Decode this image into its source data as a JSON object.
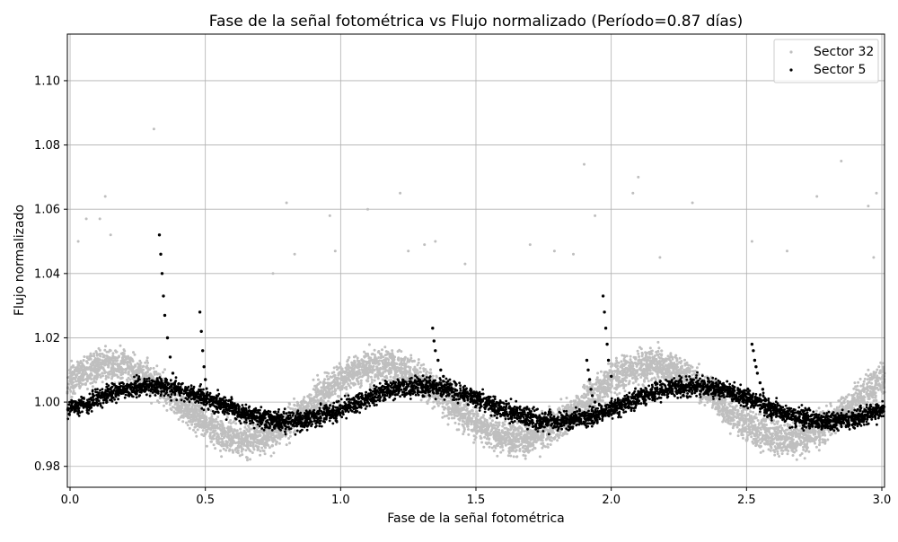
{
  "chart_data": {
    "type": "scatter",
    "title": "Fase de la señal fotométrica vs Flujo normalizado (Período=0.87 días)",
    "xlabel": "Fase de la señal fotométrica",
    "ylabel": "Flujo normalizado",
    "xlim": [
      -0.01,
      3.01
    ],
    "ylim": [
      0.9735,
      1.1145
    ],
    "xticks": [
      0.0,
      0.5,
      1.0,
      1.5,
      2.0,
      2.5,
      3.0
    ],
    "xtick_labels": [
      "0.0",
      "0.5",
      "1.0",
      "1.5",
      "2.0",
      "2.5",
      "3.0"
    ],
    "yticks": [
      0.98,
      1.0,
      1.02,
      1.04,
      1.06,
      1.08,
      1.1
    ],
    "ytick_labels": [
      "0.98",
      "1.00",
      "1.02",
      "1.04",
      "1.06",
      "1.08",
      "1.10"
    ],
    "grid": true,
    "legend_position": "top-right",
    "series": [
      {
        "name": "Sector 32",
        "color": "#bfbfbf",
        "model": {
          "period": 1.0,
          "baseline": 1.0,
          "amplitude": 0.0115,
          "phase_of_peak": 0.15,
          "scatter": 0.0035
        },
        "x": [
          0.0,
          0.05,
          0.1,
          0.15,
          0.2,
          0.25,
          0.3,
          0.35,
          0.4,
          0.45,
          0.5,
          0.55,
          0.6,
          0.65,
          0.7,
          0.75,
          0.8,
          0.85,
          0.9,
          0.95,
          1.0,
          1.05,
          1.1,
          1.15,
          1.2,
          1.25,
          1.3,
          1.35,
          1.4,
          1.45,
          1.5,
          1.55,
          1.6,
          1.65,
          1.7,
          1.75,
          1.8,
          1.85,
          1.9,
          1.95,
          2.0,
          2.05,
          2.1,
          2.15,
          2.2,
          2.25,
          2.3,
          2.35,
          2.4,
          2.45,
          2.5,
          2.55,
          2.6,
          2.65,
          2.7,
          2.75,
          2.8,
          2.85,
          2.9,
          2.95,
          3.0
        ],
        "y": [
          1.009,
          1.013,
          1.015,
          1.016,
          1.015,
          1.012,
          1.008,
          1.003,
          0.998,
          0.993,
          0.99,
          0.987,
          0.985,
          0.985,
          0.987,
          0.99,
          0.994,
          0.999,
          1.004,
          1.008,
          1.011,
          1.014,
          1.015,
          1.015,
          1.014,
          1.011,
          1.007,
          1.002,
          0.997,
          0.993,
          0.989,
          0.986,
          0.985,
          0.985,
          0.987,
          0.991,
          0.995,
          1.0,
          1.005,
          1.009,
          1.012,
          1.014,
          1.015,
          1.015,
          1.013,
          1.01,
          1.006,
          1.001,
          0.996,
          0.992,
          0.988,
          0.986,
          0.985,
          0.985,
          0.988,
          0.992,
          0.996,
          1.001,
          1.006,
          1.01,
          1.012
        ],
        "outliers": [
          [
            0.03,
            1.05
          ],
          [
            0.06,
            1.057
          ],
          [
            0.11,
            1.057
          ],
          [
            0.13,
            1.064
          ],
          [
            0.15,
            1.052
          ],
          [
            0.31,
            1.085
          ],
          [
            0.75,
            1.04
          ],
          [
            0.8,
            1.062
          ],
          [
            0.83,
            1.046
          ],
          [
            0.96,
            1.058
          ],
          [
            0.98,
            1.047
          ],
          [
            1.1,
            1.06
          ],
          [
            1.22,
            1.065
          ],
          [
            1.25,
            1.047
          ],
          [
            1.31,
            1.049
          ],
          [
            1.35,
            1.05
          ],
          [
            1.46,
            1.043
          ],
          [
            1.7,
            1.049
          ],
          [
            1.79,
            1.047
          ],
          [
            1.86,
            1.046
          ],
          [
            1.9,
            1.074
          ],
          [
            1.94,
            1.058
          ],
          [
            2.08,
            1.065
          ],
          [
            2.1,
            1.07
          ],
          [
            2.18,
            1.045
          ],
          [
            2.3,
            1.062
          ],
          [
            2.52,
            1.05
          ],
          [
            2.65,
            1.047
          ],
          [
            2.76,
            1.064
          ],
          [
            2.85,
            1.075
          ],
          [
            2.95,
            1.061
          ],
          [
            2.98,
            1.065
          ],
          [
            2.97,
            1.045
          ]
        ]
      },
      {
        "name": "Sector 5",
        "color": "#000000",
        "model": {
          "period": 1.0,
          "baseline": 0.9995,
          "amplitude": 0.0055,
          "phase_of_peak": 0.3,
          "scatter": 0.002
        },
        "x": [
          0.0,
          0.05,
          0.1,
          0.15,
          0.2,
          0.25,
          0.3,
          0.35,
          0.4,
          0.45,
          0.5,
          0.55,
          0.6,
          0.65,
          0.7,
          0.75,
          0.8,
          0.85,
          0.9,
          0.95,
          1.0,
          1.05,
          1.1,
          1.15,
          1.2,
          1.25,
          1.3,
          1.35,
          1.4,
          1.45,
          1.5,
          1.55,
          1.6,
          1.65,
          1.7,
          1.75,
          1.8,
          1.85,
          1.9,
          1.95,
          2.0,
          2.05,
          2.1,
          2.15,
          2.2,
          2.25,
          2.3,
          2.35,
          2.4,
          2.45,
          2.5,
          2.55,
          2.6,
          2.65,
          2.7,
          2.75,
          2.8,
          2.85,
          2.9,
          2.95,
          3.0
        ],
        "y": [
          0.998,
          1.0,
          1.002,
          1.003,
          1.004,
          1.005,
          1.005,
          1.005,
          1.004,
          1.003,
          1.001,
          0.999,
          0.997,
          0.995,
          0.994,
          0.994,
          0.994,
          0.995,
          0.996,
          0.997,
          0.999,
          1.001,
          1.002,
          1.004,
          1.005,
          1.005,
          1.005,
          1.005,
          1.004,
          1.002,
          1.0,
          0.998,
          0.996,
          0.995,
          0.994,
          0.994,
          0.994,
          0.995,
          0.996,
          0.998,
          1.0,
          1.001,
          1.003,
          1.004,
          1.005,
          1.005,
          1.005,
          1.005,
          1.003,
          1.001,
          0.999,
          0.997,
          0.996,
          0.995,
          0.994,
          0.994,
          0.994,
          0.995,
          0.996,
          0.997,
          0.998
        ],
        "flares": [
          {
            "x": [
              0.33,
              0.335,
              0.34,
              0.345,
              0.35,
              0.36,
              0.37,
              0.38
            ],
            "y": [
              1.052,
              1.046,
              1.04,
              1.033,
              1.027,
              1.02,
              1.014,
              1.009
            ]
          },
          {
            "x": [
              0.48,
              0.485,
              0.49,
              0.495,
              0.5
            ],
            "y": [
              1.028,
              1.022,
              1.016,
              1.011,
              1.007
            ]
          },
          {
            "x": [
              1.34,
              1.345,
              1.35,
              1.36,
              1.37,
              1.38
            ],
            "y": [
              1.023,
              1.019,
              1.016,
              1.013,
              1.01,
              1.008
            ]
          },
          {
            "x": [
              1.91,
              1.915,
              1.92,
              1.925,
              1.93,
              1.94
            ],
            "y": [
              1.013,
              1.01,
              1.007,
              1.004,
              1.002,
              1.0
            ]
          },
          {
            "x": [
              1.97,
              1.975,
              1.98,
              1.985,
              1.99,
              2.0
            ],
            "y": [
              1.033,
              1.028,
              1.023,
              1.018,
              1.013,
              1.008
            ]
          },
          {
            "x": [
              2.52,
              2.525,
              2.53,
              2.535,
              2.54,
              2.55,
              2.56
            ],
            "y": [
              1.018,
              1.016,
              1.013,
              1.011,
              1.009,
              1.006,
              1.004
            ]
          }
        ]
      }
    ]
  }
}
